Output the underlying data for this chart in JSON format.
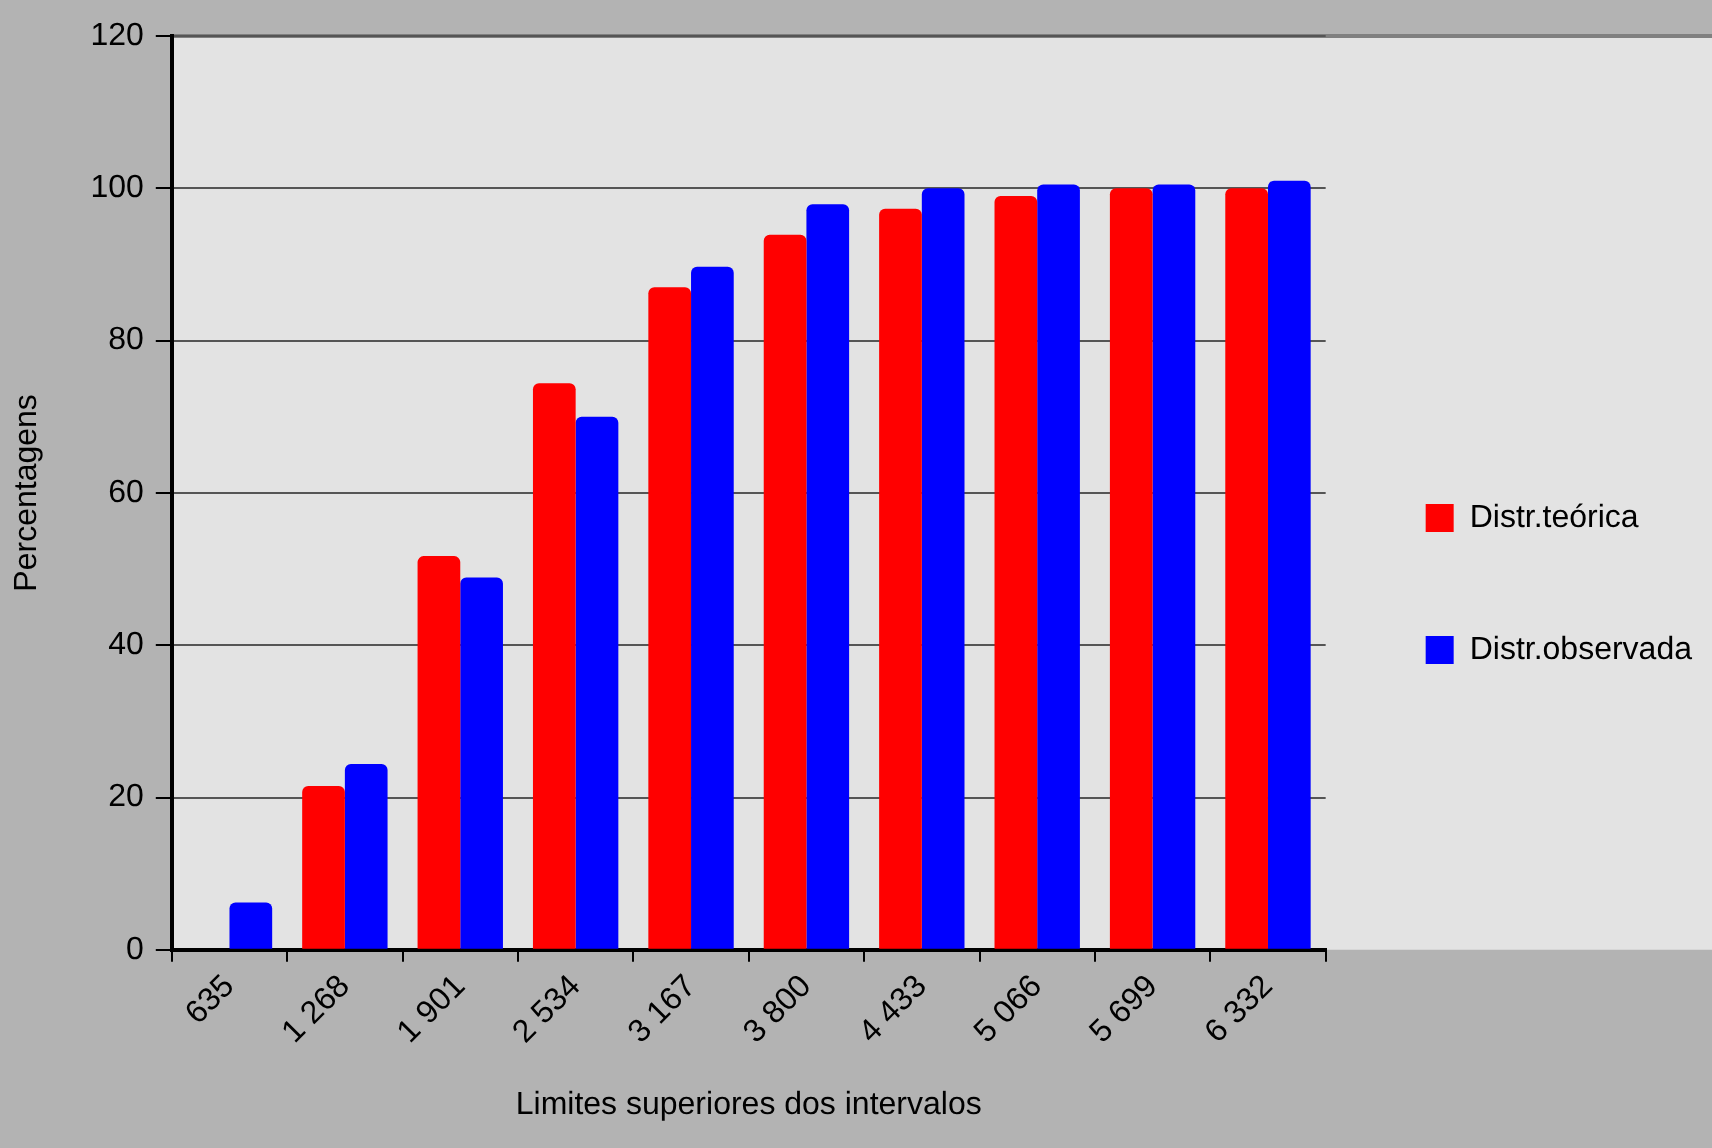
{
  "chart_data": {
    "type": "bar",
    "xlabel": "Limites superiores dos intervalos",
    "ylabel": "Percentagens",
    "categories": [
      "635",
      "1 268",
      "1 901",
      "2 534",
      "3 167",
      "3 800",
      "4 433",
      "5 066",
      "5 699",
      "6 332"
    ],
    "series": [
      {
        "name": "Distr.teórica",
        "color": "#ff0000",
        "values": [
          null,
          21.5,
          51.7,
          74.4,
          87,
          93.9,
          97.3,
          99,
          100,
          100
        ]
      },
      {
        "name": "Distr.observada",
        "color": "#0000ff",
        "values": [
          6.2,
          24.4,
          48.9,
          70,
          89.7,
          97.9,
          100,
          100.5,
          100.5,
          101
        ]
      }
    ],
    "ylim": [
      0,
      120
    ],
    "yticks": [
      0,
      20,
      40,
      60,
      80,
      100,
      120
    ],
    "grid": "y",
    "legend": "right"
  }
}
